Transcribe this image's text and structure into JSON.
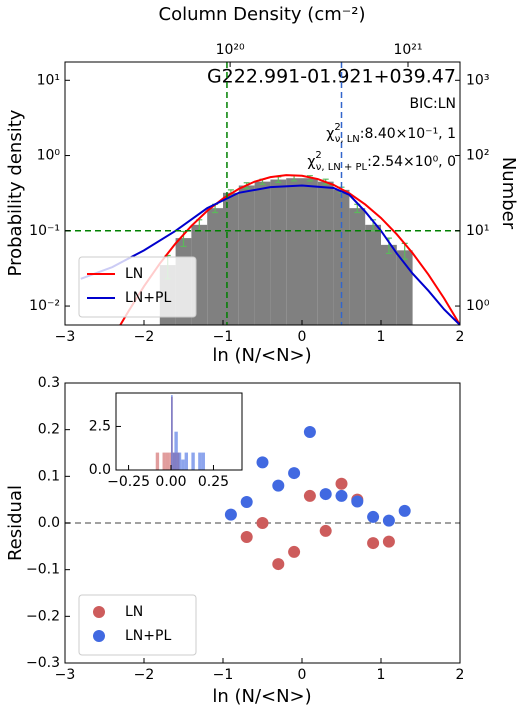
{
  "chart_data": [
    {
      "type": "histogram",
      "x2label": "Column Density (cm⁻²)",
      "x2lim": [
        1.18e+19,
        1.96e+21
      ],
      "x2log": true,
      "x2ticks": [
        {
          "value": 1e+20,
          "label": "10²⁰"
        },
        {
          "value": 1e+21,
          "label": "10²¹"
        }
      ],
      "xlabel": "ln (N/<N>)",
      "ylabel": "Probability density",
      "y2label": "Number",
      "xlim": [
        -3,
        2
      ],
      "xticks": [
        {
          "value": -3,
          "label": "−3"
        },
        {
          "value": -2,
          "label": "−2"
        },
        {
          "value": -1,
          "label": "−1"
        },
        0,
        1,
        2
      ],
      "ylim": [
        0.0056,
        17.5
      ],
      "ylog": true,
      "yticks": [
        {
          "value": 10,
          "label": "10¹"
        },
        {
          "value": 1,
          "label": "10⁰"
        },
        {
          "value": 0.1,
          "label": "10⁻¹"
        },
        {
          "value": 0.01,
          "label": "10⁻²"
        }
      ],
      "y2lim": [
        0.56,
        1750
      ],
      "y2log": true,
      "y2ticks": [
        {
          "value": 1000,
          "label": "10³"
        },
        {
          "value": 100,
          "label": "10²"
        },
        {
          "value": 10,
          "label": "10¹"
        },
        {
          "value": 1,
          "label": "10⁰"
        }
      ],
      "bins": [
        -1.8,
        -1.6,
        -1.4,
        -1.2,
        -1.0,
        -0.8,
        -0.6,
        -0.4,
        -0.2,
        0.0,
        0.2,
        0.4,
        0.6,
        0.8,
        1.0,
        1.2,
        1.4
      ],
      "values": [
        0.035,
        0.08,
        0.12,
        0.2,
        0.32,
        0.4,
        0.45,
        0.48,
        0.5,
        0.5,
        0.45,
        0.35,
        0.2,
        0.12,
        0.065,
        0.055
      ],
      "errors": [
        0.012,
        0.018,
        0.02,
        0.025,
        0.03,
        0.035,
        0.035,
        0.04,
        0.04,
        0.04,
        0.035,
        0.03,
        0.025,
        0.02,
        0.015,
        0.013
      ],
      "color": "#808080",
      "error_color": "#5cb85c",
      "series": [
        {
          "name": "LN",
          "color": "#ff0000",
          "x": [
            -2.3,
            -2.2,
            -2.0,
            -1.8,
            -1.6,
            -1.4,
            -1.2,
            -1.0,
            -0.8,
            -0.6,
            -0.4,
            -0.2,
            0.0,
            0.2,
            0.4,
            0.6,
            0.8,
            1.0,
            1.2,
            1.4,
            1.6,
            1.8,
            2.0
          ],
          "values": [
            0.0056,
            0.0084,
            0.0183,
            0.0367,
            0.068,
            0.116,
            0.184,
            0.268,
            0.361,
            0.45,
            0.517,
            0.549,
            0.538,
            0.487,
            0.407,
            0.314,
            0.224,
            0.148,
            0.0898,
            0.0505,
            0.0262,
            0.0126,
            0.0056
          ]
        },
        {
          "name": "LN+PL",
          "color": "#0000cd",
          "x": [
            -2.8,
            -2.4,
            -2.0,
            -1.6,
            -1.2,
            -0.8,
            -0.4,
            0.0,
            0.4,
            0.6,
            0.8,
            1.0,
            1.2,
            1.4,
            1.6,
            1.8,
            2.0
          ],
          "values": [
            0.023,
            0.033,
            0.055,
            0.1,
            0.2,
            0.32,
            0.38,
            0.4,
            0.37,
            0.3,
            0.18,
            0.1,
            0.05,
            0.027,
            0.016,
            0.009,
            0.0056
          ]
        }
      ],
      "vlines": [
        {
          "value": -0.95,
          "color": "#008000"
        },
        {
          "value": 0.5,
          "color": "#3366cc"
        }
      ],
      "hlines": [
        {
          "value": 0.1,
          "color": "#008000"
        }
      ],
      "annotations": {
        "name": "G222.991-01.921+039.47",
        "model": "BIC:LN",
        "chi": [
          {
            "symbol": "χ",
            "sup": "2",
            "sub": "ν, LN",
            "text": ":8.40×10⁻¹, 1"
          },
          {
            "symbol": "χ",
            "sup": "2",
            "sub": "ν, LN + PL",
            "text": ":2.54×10⁰, 0"
          }
        ]
      },
      "legend": "lower left"
    },
    {
      "type": "scatter",
      "xlabel": "ln (N/<N>)",
      "ylabel": "Residual",
      "xlim": [
        -3,
        2
      ],
      "xticks": [
        {
          "value": -3,
          "label": "−3"
        },
        {
          "value": -2,
          "label": "−2"
        },
        {
          "value": -1,
          "label": "−1"
        },
        0,
        1,
        2
      ],
      "ylim": [
        -0.3,
        0.3
      ],
      "yticks": [
        {
          "value": -0.3,
          "label": "−0.3"
        },
        {
          "value": -0.2,
          "label": "−0.2"
        },
        {
          "value": -0.1,
          "label": "−0.1"
        },
        {
          "value": 0,
          "label": "0.0"
        },
        0.1,
        0.2,
        0.3
      ],
      "hlines": [
        {
          "value": 0,
          "color": "#808080"
        }
      ],
      "series": [
        {
          "name": "LN",
          "color": "#cd5c5c",
          "x": [
            -0.7,
            -0.5,
            -0.3,
            -0.1,
            0.1,
            0.3,
            0.5,
            0.7,
            0.9,
            1.1
          ],
          "values": [
            -0.03,
            0.0,
            -0.088,
            -0.062,
            0.058,
            -0.017,
            0.084,
            0.05,
            -0.043,
            -0.04
          ]
        },
        {
          "name": "LN+PL",
          "color": "#4169e1",
          "x": [
            -0.9,
            -0.7,
            -0.5,
            -0.3,
            -0.1,
            0.1,
            0.3,
            0.5,
            0.7,
            0.9,
            1.1,
            1.3
          ],
          "values": [
            0.018,
            0.045,
            0.13,
            0.08,
            0.107,
            0.195,
            0.062,
            0.058,
            0.046,
            0.013,
            0.005,
            0.026
          ]
        }
      ],
      "legend": "lower left",
      "inset": {
        "type": "histogram",
        "xlim": [
          -0.324,
          0.418
        ],
        "xticks": [
          {
            "value": -0.25,
            "label": "−0.25"
          },
          {
            "value": 0,
            "label": "0.00"
          },
          {
            "value": 0.25,
            "label": "0.25"
          }
        ],
        "ylim": [
          0,
          4.42
        ],
        "yticks": [
          {
            "value": 0,
            "label": "0.0"
          },
          2.5
        ],
        "series": [
          {
            "color": "#cd5c5c",
            "bins": [
              -0.09,
              -0.07,
              -0.05,
              -0.03,
              -0.01,
              0.0,
              0.01,
              0.03,
              0.05
            ],
            "values": [
              1,
              0,
              1,
              1,
              1,
              4.2,
              1,
              1
            ]
          },
          {
            "color": "#4169e1",
            "bins": [
              0.0,
              0.01,
              0.02,
              0.04,
              0.06,
              0.08,
              0.1,
              0.12,
              0.14,
              0.16,
              0.18,
              0.2
            ],
            "values": [
              4.3,
              1,
              2.2,
              1,
              0.6,
              1,
              0,
              1,
              0,
              1,
              1
            ]
          }
        ]
      }
    }
  ]
}
